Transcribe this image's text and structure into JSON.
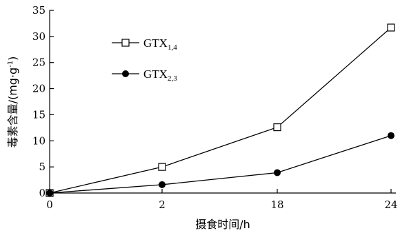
{
  "chart_data": {
    "type": "line",
    "categories": [
      "0",
      "2",
      "18",
      "24"
    ],
    "series": [
      {
        "name": "GTX",
        "name_subscript": "1,4",
        "marker": "open-square",
        "values": [
          0,
          5.0,
          12.6,
          31.7
        ]
      },
      {
        "name": "GTX",
        "name_subscript": "2,3",
        "marker": "filled-circle",
        "values": [
          0,
          1.6,
          3.9,
          11.0
        ]
      }
    ],
    "xlabel": "摄食时间/h",
    "ylabel": "毒素含量/(mg·g",
    "ylabel_superscript": "-1",
    "ylabel_suffix": ")",
    "ylim": [
      0,
      35
    ],
    "yticks": [
      "0",
      "5",
      "10",
      "15",
      "20",
      "25",
      "30",
      "35"
    ],
    "grid": false,
    "legend_position": "top-left",
    "colors": {
      "line": "#000000",
      "marker_fill_open": "#ffffff",
      "marker_fill_solid": "#000000"
    }
  }
}
